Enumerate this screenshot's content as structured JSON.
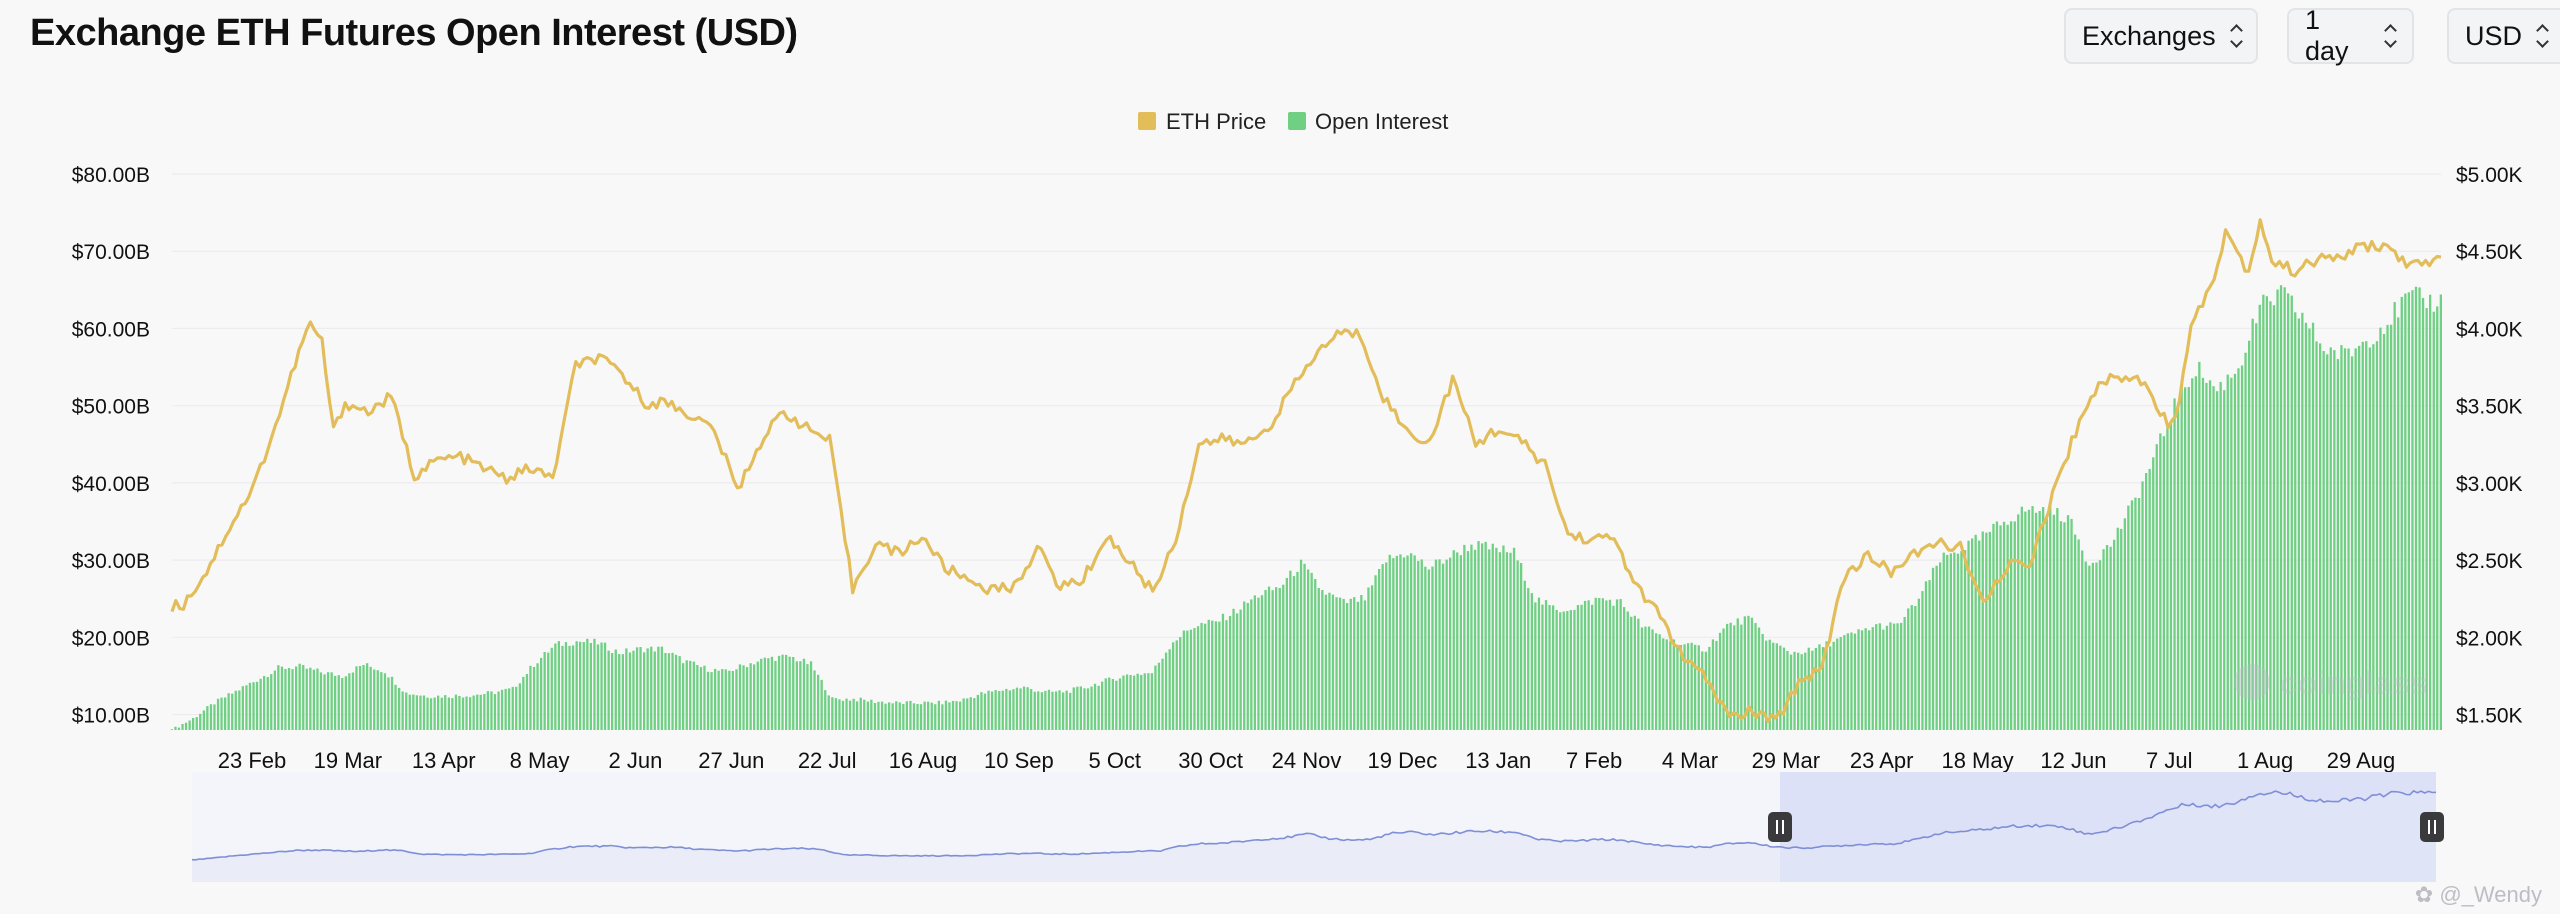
{
  "header": {
    "title": "Exchange ETH Futures Open Interest (USD)",
    "controls": {
      "exchanges": "Exchanges",
      "interval": "1 day",
      "currency": "USD"
    }
  },
  "watermark": {
    "brand": "coinglass",
    "user": "@_Wendy"
  },
  "colors": {
    "price": "#e2bd5a",
    "oi": "#6fcf83",
    "grid": "#ececef",
    "navigator": "#7f8fd6",
    "navigatorSel": "#dde1f7"
  },
  "icons": [
    "chevron-updown-icon",
    "navigator-handle-icon"
  ],
  "chart_data": {
    "type": "bar+line",
    "legend": [
      "ETH Price",
      "Open Interest"
    ],
    "legend_position": "top-center",
    "x_ticks": [
      "23 Feb",
      "19 Mar",
      "13 Apr",
      "8 May",
      "2 Jun",
      "27 Jun",
      "22 Jul",
      "16 Aug",
      "10 Sep",
      "5 Oct",
      "30 Oct",
      "24 Nov",
      "19 Dec",
      "13 Jan",
      "7 Feb",
      "4 Mar",
      "29 Mar",
      "23 Apr",
      "18 May",
      "12 Jun",
      "7 Jul",
      "1 Aug",
      "29 Aug"
    ],
    "y_left": {
      "label": "Open Interest",
      "ticks": [
        "$10.00B",
        "$20.00B",
        "$30.00B",
        "$40.00B",
        "$50.00B",
        "$60.00B",
        "$70.00B",
        "$80.00B"
      ],
      "range": [
        8,
        80
      ]
    },
    "y_right": {
      "label": "ETH Price",
      "ticks": [
        "$1.50K",
        "$2.00K",
        "$2.50K",
        "$3.00K",
        "$3.50K",
        "$4.00K",
        "$4.50K",
        "$5.00K"
      ],
      "range": [
        1500,
        5000
      ]
    },
    "grid": true,
    "series": [
      {
        "name": "Open Interest",
        "axis": "left",
        "unit": "USD billions",
        "points": [
          [
            0,
            8.0
          ],
          [
            6,
            9.5
          ],
          [
            12,
            11.5
          ],
          [
            18,
            13.0
          ],
          [
            24,
            14.5
          ],
          [
            30,
            16.0
          ],
          [
            36,
            16.2
          ],
          [
            42,
            15.5
          ],
          [
            48,
            15.0
          ],
          [
            54,
            16.5
          ],
          [
            60,
            15.6
          ],
          [
            66,
            12.8
          ],
          [
            72,
            12.4
          ],
          [
            78,
            12.4
          ],
          [
            84,
            12.5
          ],
          [
            90,
            12.8
          ],
          [
            96,
            13.3
          ],
          [
            102,
            16.5
          ],
          [
            108,
            19.0
          ],
          [
            114,
            19.5
          ],
          [
            120,
            19.3
          ],
          [
            126,
            18.0
          ],
          [
            132,
            18.5
          ],
          [
            138,
            18.5
          ],
          [
            144,
            17.0
          ],
          [
            150,
            16.0
          ],
          [
            156,
            15.5
          ],
          [
            162,
            16.5
          ],
          [
            168,
            17.3
          ],
          [
            174,
            17.5
          ],
          [
            180,
            16.5
          ],
          [
            186,
            12.0
          ],
          [
            192,
            12.0
          ],
          [
            198,
            11.7
          ],
          [
            204,
            11.5
          ],
          [
            210,
            11.5
          ],
          [
            216,
            11.5
          ],
          [
            222,
            11.8
          ],
          [
            228,
            12.7
          ],
          [
            234,
            13.2
          ],
          [
            240,
            13.5
          ],
          [
            246,
            12.9
          ],
          [
            252,
            13.0
          ],
          [
            258,
            13.6
          ],
          [
            264,
            14.5
          ],
          [
            270,
            15.2
          ],
          [
            276,
            15.4
          ],
          [
            282,
            19.5
          ],
          [
            288,
            21.5
          ],
          [
            294,
            22.0
          ],
          [
            300,
            23.5
          ],
          [
            306,
            25.5
          ],
          [
            312,
            26.5
          ],
          [
            318,
            29.5
          ],
          [
            324,
            26.0
          ],
          [
            330,
            24.5
          ],
          [
            336,
            25.0
          ],
          [
            342,
            30.0
          ],
          [
            348,
            31.0
          ],
          [
            354,
            29.0
          ],
          [
            360,
            30.5
          ],
          [
            366,
            32.0
          ],
          [
            372,
            31.5
          ],
          [
            378,
            31.0
          ],
          [
            384,
            25.0
          ],
          [
            390,
            23.5
          ],
          [
            396,
            24.0
          ],
          [
            402,
            25.0
          ],
          [
            408,
            24.5
          ],
          [
            414,
            21.5
          ],
          [
            420,
            20.0
          ],
          [
            426,
            19.0
          ],
          [
            432,
            18.5
          ],
          [
            438,
            21.5
          ],
          [
            444,
            22.5
          ],
          [
            450,
            19.5
          ],
          [
            456,
            18.0
          ],
          [
            462,
            18.3
          ],
          [
            468,
            19.5
          ],
          [
            474,
            20.5
          ],
          [
            480,
            21.5
          ],
          [
            486,
            21.5
          ],
          [
            492,
            25.0
          ],
          [
            498,
            30.0
          ],
          [
            504,
            31.5
          ],
          [
            510,
            33.0
          ],
          [
            516,
            35.0
          ],
          [
            522,
            36.5
          ],
          [
            528,
            36.5
          ],
          [
            534,
            35.5
          ],
          [
            540,
            29.5
          ],
          [
            546,
            32.0
          ],
          [
            552,
            37.0
          ],
          [
            558,
            43.0
          ],
          [
            564,
            50.0
          ],
          [
            570,
            55.0
          ],
          [
            576,
            52.0
          ],
          [
            582,
            55.0
          ],
          [
            588,
            62.5
          ],
          [
            594,
            64.5
          ],
          [
            600,
            61.5
          ],
          [
            606,
            57.5
          ],
          [
            612,
            56.5
          ],
          [
            618,
            58.5
          ],
          [
            624,
            61.0
          ],
          [
            630,
            64.0
          ],
          [
            636,
            63.5
          ]
        ]
      },
      {
        "name": "ETH Price",
        "axis": "right",
        "unit": "USD",
        "points": [
          [
            0,
            2280
          ],
          [
            3,
            2290
          ],
          [
            9,
            2500
          ],
          [
            15,
            2780
          ],
          [
            21,
            3020
          ],
          [
            27,
            3420
          ],
          [
            33,
            3880
          ],
          [
            36,
            4060
          ],
          [
            39,
            3940
          ],
          [
            42,
            3380
          ],
          [
            45,
            3560
          ],
          [
            51,
            3500
          ],
          [
            57,
            3600
          ],
          [
            63,
            3100
          ],
          [
            69,
            3200
          ],
          [
            75,
            3220
          ],
          [
            81,
            3150
          ],
          [
            87,
            3080
          ],
          [
            93,
            3150
          ],
          [
            99,
            3080
          ],
          [
            105,
            3800
          ],
          [
            111,
            3840
          ],
          [
            117,
            3740
          ],
          [
            123,
            3560
          ],
          [
            129,
            3560
          ],
          [
            135,
            3480
          ],
          [
            141,
            3390
          ],
          [
            147,
            3010
          ],
          [
            153,
            3310
          ],
          [
            159,
            3510
          ],
          [
            165,
            3400
          ],
          [
            171,
            3320
          ],
          [
            177,
            2390
          ],
          [
            183,
            2680
          ],
          [
            189,
            2610
          ],
          [
            195,
            2720
          ],
          [
            201,
            2520
          ],
          [
            207,
            2450
          ],
          [
            213,
            2380
          ],
          [
            219,
            2400
          ],
          [
            225,
            2650
          ],
          [
            231,
            2400
          ],
          [
            237,
            2450
          ],
          [
            243,
            2720
          ],
          [
            249,
            2560
          ],
          [
            255,
            2370
          ],
          [
            261,
            2700
          ],
          [
            267,
            3300
          ],
          [
            273,
            3330
          ],
          [
            279,
            3300
          ],
          [
            285,
            3400
          ],
          [
            291,
            3640
          ],
          [
            297,
            3850
          ],
          [
            303,
            4000
          ],
          [
            309,
            3990
          ],
          [
            315,
            3600
          ],
          [
            321,
            3380
          ],
          [
            327,
            3310
          ],
          [
            333,
            3710
          ],
          [
            339,
            3300
          ],
          [
            345,
            3400
          ],
          [
            351,
            3310
          ],
          [
            357,
            3170
          ],
          [
            363,
            2730
          ],
          [
            369,
            2700
          ],
          [
            375,
            2710
          ],
          [
            381,
            2390
          ],
          [
            387,
            2220
          ],
          [
            393,
            1950
          ],
          [
            399,
            1820
          ],
          [
            405,
            1580
          ],
          [
            411,
            1620
          ],
          [
            417,
            1550
          ],
          [
            423,
            1800
          ],
          [
            429,
            1900
          ],
          [
            435,
            2480
          ],
          [
            441,
            2590
          ],
          [
            447,
            2500
          ],
          [
            453,
            2600
          ],
          [
            459,
            2680
          ],
          [
            465,
            2650
          ],
          [
            471,
            2280
          ],
          [
            477,
            2530
          ],
          [
            483,
            2550
          ],
          [
            489,
            2980
          ],
          [
            495,
            3380
          ],
          [
            501,
            3690
          ],
          [
            507,
            3720
          ],
          [
            513,
            3700
          ],
          [
            519,
            3420
          ],
          [
            522,
            3550
          ],
          [
            525,
            4080
          ],
          [
            531,
            4320
          ],
          [
            534,
            4650
          ],
          [
            537,
            4510
          ],
          [
            540,
            4380
          ],
          [
            543,
            4720
          ],
          [
            546,
            4450
          ],
          [
            552,
            4390
          ],
          [
            558,
            4460
          ],
          [
            564,
            4480
          ],
          [
            570,
            4550
          ],
          [
            576,
            4540
          ],
          [
            582,
            4420
          ],
          [
            588,
            4440
          ],
          [
            590,
            4480
          ]
        ]
      }
    ]
  }
}
